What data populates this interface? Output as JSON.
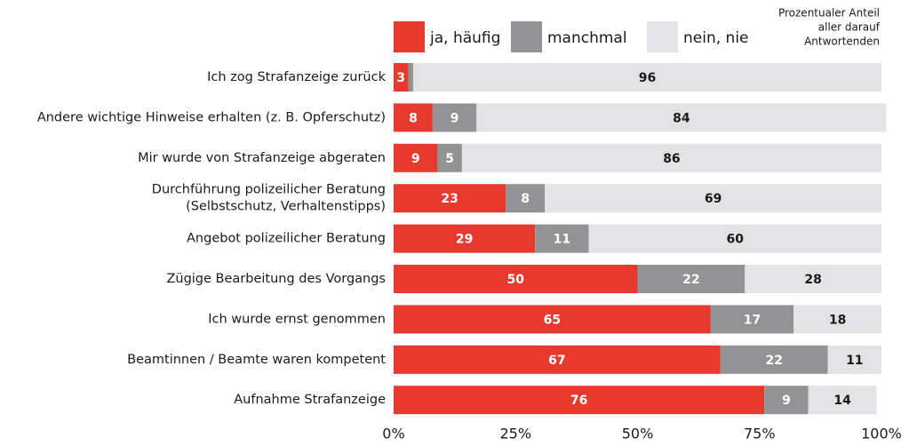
{
  "chart_data": {
    "type": "stacked-barh",
    "annotation": [
      "Prozentualer Anteil",
      "aller darauf",
      "Antwortenden"
    ],
    "categories": [
      "Ich zog Strafanzeige zurück",
      "Andere wichtige Hinweise erhalten (z. B. Opferschutz)",
      "Mir wurde von Strafanzeige abgeraten",
      [
        "Durchführung polizeilicher Beratung",
        "(Selbstschutz, Verhaltenstipps)"
      ],
      "Angebot polizeilicher Beratung",
      "Zügige Bearbeitung des Vorgangs",
      "Ich wurde ernst genommen",
      "Beamtinnen / Beamte waren kompetent",
      "Aufnahme Strafanzeige"
    ],
    "series": [
      {
        "name": "ja, häufig",
        "color": "#e8392f",
        "values": [
          3,
          8,
          9,
          23,
          29,
          50,
          65,
          67,
          76
        ]
      },
      {
        "name": "manchmal",
        "color": "#939395",
        "values": [
          1,
          9,
          5,
          8,
          11,
          22,
          17,
          22,
          9
        ]
      },
      {
        "name": "nein, nie",
        "color": "#e3e3e5",
        "values": [
          96,
          84,
          86,
          69,
          60,
          28,
          18,
          11,
          14
        ]
      }
    ],
    "xlim": [
      0,
      100
    ],
    "xticks": [
      {
        "value": 0,
        "label": "0%"
      },
      {
        "value": 25,
        "label": "25%"
      },
      {
        "value": 50,
        "label": "50%"
      },
      {
        "value": 75,
        "label": "75%"
      },
      {
        "value": 100,
        "label": "100%"
      }
    ]
  }
}
